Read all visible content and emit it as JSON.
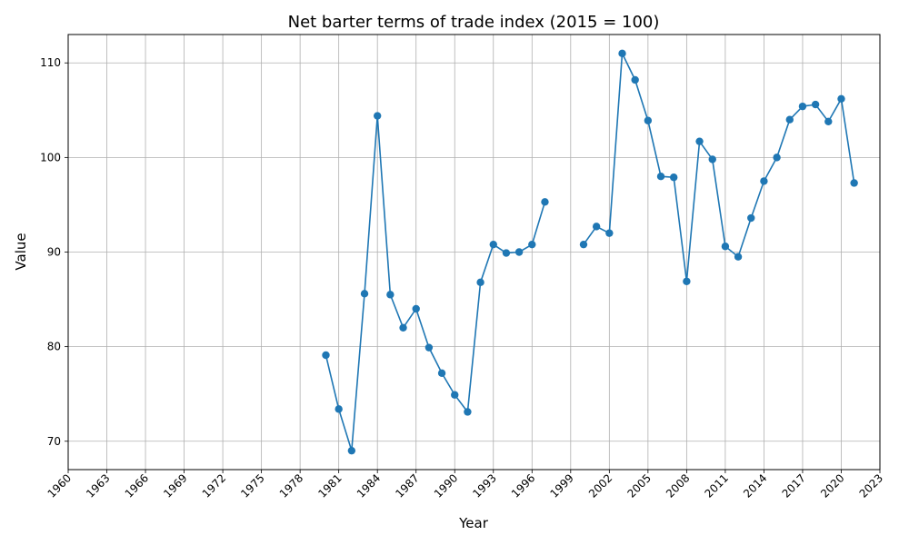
{
  "chart_data": {
    "type": "line",
    "title": "Net barter terms of trade index (2015 = 100)",
    "xlabel": "Year",
    "ylabel": "Value",
    "xlim": [
      1960,
      2023
    ],
    "ylim": [
      67,
      113
    ],
    "grid": true,
    "marker": "circle",
    "x_ticks": [
      1960,
      1963,
      1966,
      1969,
      1972,
      1975,
      1978,
      1981,
      1984,
      1987,
      1990,
      1993,
      1996,
      1999,
      2002,
      2005,
      2008,
      2011,
      2014,
      2017,
      2020,
      2023
    ],
    "y_ticks": [
      70,
      80,
      90,
      100,
      110
    ],
    "series": [
      {
        "color": "#1f77b4",
        "x": [
          1980,
          1981,
          1982,
          1983,
          1984,
          1985,
          1986,
          1987,
          1988,
          1989,
          1990,
          1991,
          1992,
          1993,
          1994,
          1995,
          1996,
          1997,
          1998,
          1999,
          2000,
          2001,
          2002,
          2003,
          2004,
          2005,
          2006,
          2007,
          2008,
          2009,
          2010,
          2011,
          2012,
          2013,
          2014,
          2015,
          2016,
          2017,
          2018,
          2019,
          2020,
          2021
        ],
        "y": [
          79.1,
          73.4,
          69.0,
          85.6,
          104.4,
          85.5,
          82.0,
          84.0,
          79.9,
          77.2,
          74.9,
          73.1,
          86.8,
          90.8,
          89.9,
          90.0,
          90.8,
          95.3,
          null,
          null,
          90.8,
          92.7,
          92.0,
          111.0,
          108.2,
          103.9,
          98.0,
          97.9,
          86.9,
          101.7,
          99.8,
          90.6,
          89.5,
          93.6,
          97.5,
          100.0,
          104.0,
          105.4,
          105.6,
          103.8,
          106.2,
          97.3
        ]
      }
    ]
  }
}
